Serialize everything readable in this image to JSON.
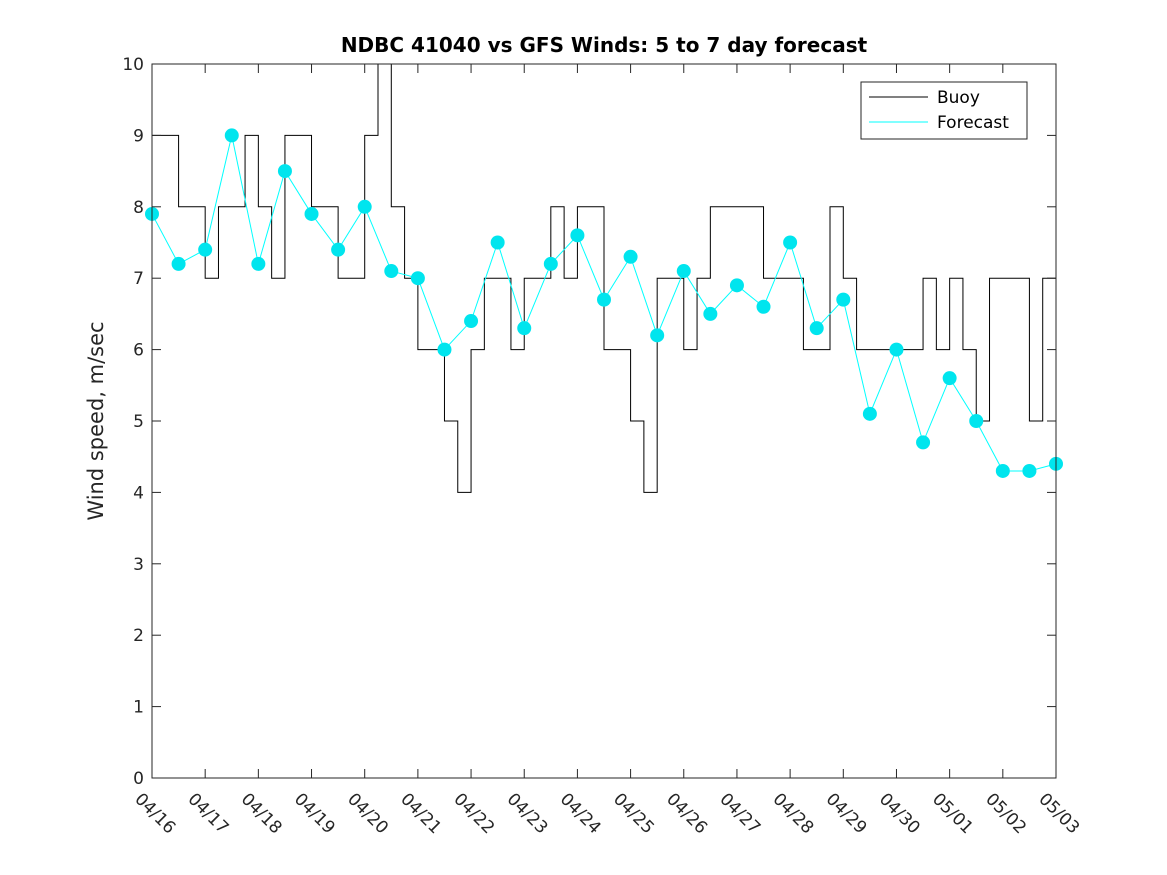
{
  "chart_data": {
    "type": "line",
    "title": "NDBC 41040 vs GFS Winds: 5 to 7 day forecast",
    "xlabel": "",
    "ylabel": "Wind speed, m/sec",
    "x_tick_labels": [
      "04/16",
      "04/17",
      "04/18",
      "04/19",
      "04/20",
      "04/21",
      "04/22",
      "04/23",
      "04/24",
      "04/25",
      "04/26",
      "04/27",
      "04/28",
      "04/29",
      "04/30",
      "05/01",
      "05/02",
      "05/03"
    ],
    "y_tick_labels": [
      "0",
      "1",
      "2",
      "3",
      "4",
      "5",
      "6",
      "7",
      "8",
      "9",
      "10"
    ],
    "xlim_days": [
      0,
      17
    ],
    "ylim": [
      0,
      10
    ],
    "grid": false,
    "legend_position": "top-right",
    "colors": {
      "buoy": "#000000",
      "forecast": "#00ffff",
      "marker": "#00e5ee",
      "axis": "#262626"
    },
    "series": [
      {
        "name": "Buoy",
        "x_days": [
          0,
          0.25,
          0.5,
          0.75,
          1,
          1.25,
          1.5,
          1.75,
          2,
          2.25,
          2.5,
          2.75,
          3,
          3.25,
          3.5,
          3.75,
          4,
          4.25,
          4.5,
          4.75,
          5,
          5.25,
          5.5,
          5.75,
          6,
          6.25,
          6.5,
          6.75,
          7,
          7.25,
          7.5,
          7.75,
          8,
          8.25,
          8.5,
          8.75,
          9,
          9.25,
          9.5,
          9.75,
          10,
          10.25,
          10.5,
          10.75,
          11,
          11.25,
          11.5,
          11.75,
          12,
          12.25,
          12.5,
          12.75,
          13,
          13.25,
          13.5,
          13.75,
          14,
          14.25,
          14.5,
          14.75,
          15,
          15.25,
          15.5,
          15.75,
          16,
          16.25,
          16.5,
          16.75,
          17
        ],
        "y": [
          9,
          9,
          8,
          8,
          7,
          8,
          8,
          9,
          8,
          7,
          9,
          9,
          8,
          8,
          7,
          7,
          9,
          10,
          8,
          7,
          6,
          6,
          5,
          4,
          6,
          7,
          7,
          6,
          7,
          7,
          8,
          7,
          8,
          8,
          6,
          6,
          5,
          4,
          7,
          7,
          6,
          7,
          8,
          8,
          8,
          8,
          7,
          7,
          7,
          6,
          6,
          8,
          7,
          6,
          6,
          6,
          6,
          6,
          7,
          6,
          7,
          6,
          5,
          7,
          7,
          7,
          5,
          7,
          7
        ]
      },
      {
        "name": "Forecast",
        "x_days": [
          0,
          0.5,
          1,
          1.5,
          2,
          2.5,
          3,
          3.5,
          4,
          4.5,
          5,
          5.5,
          6,
          6.5,
          7,
          7.5,
          8,
          8.5,
          9,
          9.5,
          10,
          10.5,
          11,
          11.5,
          12,
          12.5,
          13,
          13.5,
          14,
          14.5,
          15,
          15.5,
          16,
          16.5,
          17
        ],
        "y": [
          7.9,
          7.2,
          7.4,
          9.0,
          7.2,
          8.5,
          7.9,
          7.4,
          8.0,
          7.1,
          7.0,
          6.0,
          6.4,
          7.5,
          6.3,
          7.2,
          7.6,
          6.7,
          7.3,
          6.2,
          7.1,
          6.5,
          6.9,
          6.6,
          7.5,
          6.3,
          6.7,
          5.1,
          6.0,
          4.7,
          5.6,
          5.0,
          4.3,
          4.3,
          4.4
        ]
      }
    ]
  }
}
